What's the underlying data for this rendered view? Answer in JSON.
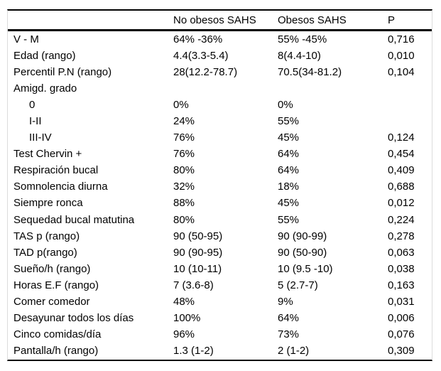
{
  "chart_data": {
    "type": "table",
    "columns": [
      "",
      "No obesos SAHS",
      "Obesos SAHS",
      "P"
    ],
    "rows": [
      {
        "label": "V - M",
        "indent": false,
        "no_obesos": "64% -36%",
        "obesos": "55% -45%",
        "p": "0,716"
      },
      {
        "label": "Edad (rango)",
        "indent": false,
        "no_obesos": "4.4(3.3-5.4)",
        "obesos": "8(4.4-10)",
        "p": "0,010"
      },
      {
        "label": "Percentil P.N (rango)",
        "indent": false,
        "no_obesos": "28(12.2-78.7)",
        "obesos": "70.5(34-81.2)",
        "p": "0,104"
      },
      {
        "label": "Amigd. grado",
        "indent": false,
        "no_obesos": "",
        "obesos": "",
        "p": ""
      },
      {
        "label": "0",
        "indent": true,
        "no_obesos": "0%",
        "obesos": "0%",
        "p": ""
      },
      {
        "label": "I-II",
        "indent": true,
        "no_obesos": "24%",
        "obesos": "55%",
        "p": ""
      },
      {
        "label": "III-IV",
        "indent": true,
        "no_obesos": "76%",
        "obesos": "45%",
        "p": "0,124"
      },
      {
        "label": "Test Chervin +",
        "indent": false,
        "no_obesos": "76%",
        "obesos": "64%",
        "p": "0,454"
      },
      {
        "label": "Respiración bucal",
        "indent": false,
        "no_obesos": "80%",
        "obesos": "64%",
        "p": "0,409"
      },
      {
        "label": "Somnolencia diurna",
        "indent": false,
        "no_obesos": "32%",
        "obesos": "18%",
        "p": "0,688"
      },
      {
        "label": "Siempre ronca",
        "indent": false,
        "no_obesos": "88%",
        "obesos": "45%",
        "p": "0,012"
      },
      {
        "label": "Sequedad bucal matutina",
        "indent": false,
        "no_obesos": "80%",
        "obesos": "55%",
        "p": "0,224"
      },
      {
        "label": "TAS p (rango)",
        "indent": false,
        "no_obesos": "90 (50-95)",
        "obesos": "90 (90-99)",
        "p": "0,278"
      },
      {
        "label": "TAD p(rango)",
        "indent": false,
        "no_obesos": "90 (90-95)",
        "obesos": "90 (50-90)",
        "p": "0,063"
      },
      {
        "label": "Sueño/h (rango)",
        "indent": false,
        "no_obesos": "10 (10-11)",
        "obesos": "10 (9.5 -10)",
        "p": "0,038"
      },
      {
        "label": "Horas E.F (rango)",
        "indent": false,
        "no_obesos": "7 (3.6-8)",
        "obesos": "5 (2.7-7)",
        "p": "0,163"
      },
      {
        "label": "Comer comedor",
        "indent": false,
        "no_obesos": "48%",
        "obesos": "9%",
        "p": "0,031"
      },
      {
        "label": "Desayunar todos los días",
        "indent": false,
        "no_obesos": "100%",
        "obesos": "64%",
        "p": "0,006"
      },
      {
        "label": "Cinco comidas/día",
        "indent": false,
        "no_obesos": "96%",
        "obesos": "73%",
        "p": "0,076"
      },
      {
        "label": "Pantalla/h (rango)",
        "indent": false,
        "no_obesos": "1.3 (1-2)",
        "obesos": "2 (1-2)",
        "p": "0,309"
      }
    ],
    "title": "",
    "layout": {
      "grid": false,
      "borders": "top, header-separator, bottom"
    },
    "colors": {
      "text": "#000000",
      "border": "#000000",
      "side_border": "#dcdcdc",
      "background": "#ffffff"
    }
  }
}
